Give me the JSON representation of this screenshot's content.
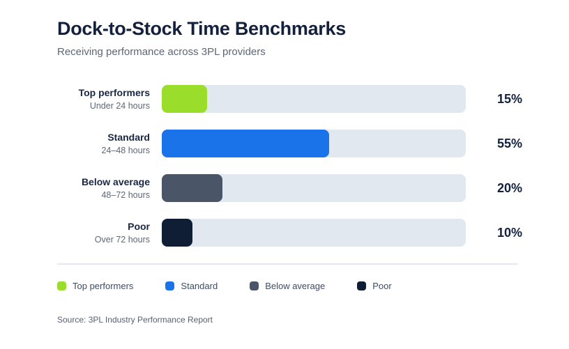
{
  "header": {
    "title": "Dock-to-Stock Time Benchmarks",
    "subtitle": "Receiving performance across 3PL providers"
  },
  "chart_data": {
    "type": "bar",
    "orientation": "horizontal",
    "title": "Dock-to-Stock Time Benchmarks",
    "subtitle": "Receiving performance across 3PL providers",
    "categories": [
      "Top performers",
      "Standard",
      "Below average",
      "Poor"
    ],
    "sublabels": [
      "Under 24 hours",
      "24–48 hours",
      "48–72 hours",
      "Over 72 hours"
    ],
    "values": [
      15,
      55,
      20,
      10
    ],
    "value_labels": [
      "15%",
      "55%",
      "20%",
      "10%"
    ],
    "colors": [
      "#9ADE2B",
      "#1A73E8",
      "#4A5568",
      "#0F1D35"
    ],
    "track_color": "#E2E8F0",
    "xlim": [
      0,
      100
    ],
    "grid": false,
    "legend_position": "bottom"
  },
  "legend": {
    "items": [
      {
        "label": "Top performers",
        "color": "#9ADE2B"
      },
      {
        "label": "Standard",
        "color": "#1A73E8"
      },
      {
        "label": "Below average",
        "color": "#4A5568"
      },
      {
        "label": "Poor",
        "color": "#0F1D35"
      }
    ]
  },
  "source": {
    "text": "Source: 3PL Industry Performance Report"
  }
}
